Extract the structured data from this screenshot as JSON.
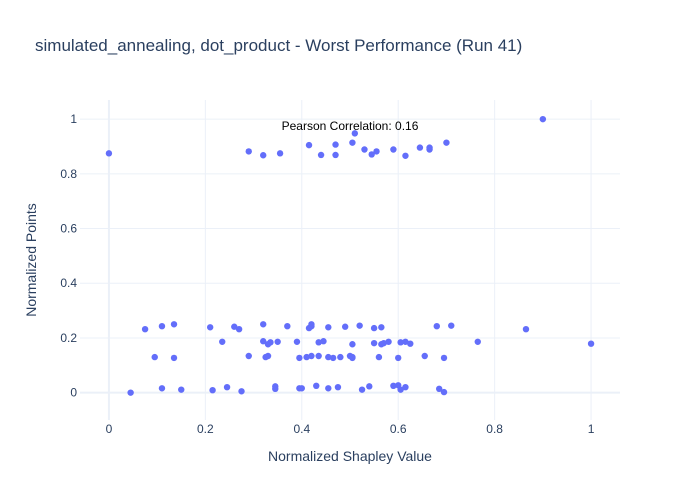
{
  "chart_data": {
    "type": "scatter",
    "title": "simulated_annealing, dot_product - Worst Performance (Run 41)",
    "xlabel": "Normalized Shapley Value",
    "ylabel": "Normalized Points",
    "xlim": [
      -0.06,
      1.06
    ],
    "ylim": [
      -0.1,
      1.07
    ],
    "xticks": [
      0,
      0.2,
      0.4,
      0.6,
      0.8,
      1
    ],
    "xtick_labels": [
      "0",
      "0.2",
      "0.4",
      "0.6",
      "0.8",
      "1"
    ],
    "yticks": [
      0,
      0.2,
      0.4,
      0.6,
      0.8,
      1
    ],
    "ytick_labels": [
      "0",
      "0.2",
      "0.4",
      "0.6",
      "0.8",
      "1"
    ],
    "grid": true,
    "marker_color": "#636efa",
    "gridline_color": "#ebf0f8",
    "zeroline_color": "#ebf0f8",
    "annotation": {
      "text": "Pearson Correlation: 0.16",
      "x": 0.5,
      "y": 0.975
    },
    "series": [
      {
        "points": [
          [
            0.0,
            0.875
          ],
          [
            0.29,
            0.882
          ],
          [
            0.32,
            0.868
          ],
          [
            0.355,
            0.875
          ],
          [
            0.415,
            0.905
          ],
          [
            0.44,
            0.869
          ],
          [
            0.47,
            0.869
          ],
          [
            0.47,
            0.907
          ],
          [
            0.505,
            0.914
          ],
          [
            0.51,
            0.948
          ],
          [
            0.53,
            0.889
          ],
          [
            0.545,
            0.871
          ],
          [
            0.555,
            0.882
          ],
          [
            0.59,
            0.889
          ],
          [
            0.615,
            0.866
          ],
          [
            0.645,
            0.896
          ],
          [
            0.665,
            0.889
          ],
          [
            0.665,
            0.896
          ],
          [
            0.7,
            0.914
          ],
          [
            0.9,
            1.0
          ],
          [
            0.075,
            0.232
          ],
          [
            0.11,
            0.243
          ],
          [
            0.135,
            0.25
          ],
          [
            0.21,
            0.239
          ],
          [
            0.26,
            0.241
          ],
          [
            0.27,
            0.232
          ],
          [
            0.32,
            0.25
          ],
          [
            0.37,
            0.243
          ],
          [
            0.415,
            0.236
          ],
          [
            0.42,
            0.25
          ],
          [
            0.42,
            0.243
          ],
          [
            0.455,
            0.239
          ],
          [
            0.49,
            0.241
          ],
          [
            0.52,
            0.245
          ],
          [
            0.55,
            0.236
          ],
          [
            0.565,
            0.239
          ],
          [
            0.68,
            0.243
          ],
          [
            0.71,
            0.245
          ],
          [
            0.865,
            0.232
          ],
          [
            0.235,
            0.186
          ],
          [
            0.32,
            0.188
          ],
          [
            0.33,
            0.177
          ],
          [
            0.335,
            0.184
          ],
          [
            0.35,
            0.186
          ],
          [
            0.39,
            0.186
          ],
          [
            0.435,
            0.184
          ],
          [
            0.445,
            0.188
          ],
          [
            0.505,
            0.177
          ],
          [
            0.55,
            0.181
          ],
          [
            0.565,
            0.177
          ],
          [
            0.57,
            0.181
          ],
          [
            0.58,
            0.186
          ],
          [
            0.605,
            0.184
          ],
          [
            0.615,
            0.186
          ],
          [
            0.625,
            0.179
          ],
          [
            0.765,
            0.186
          ],
          [
            1.0,
            0.179
          ],
          [
            0.095,
            0.13
          ],
          [
            0.135,
            0.127
          ],
          [
            0.29,
            0.134
          ],
          [
            0.325,
            0.13
          ],
          [
            0.33,
            0.134
          ],
          [
            0.395,
            0.127
          ],
          [
            0.41,
            0.13
          ],
          [
            0.42,
            0.134
          ],
          [
            0.435,
            0.134
          ],
          [
            0.455,
            0.13
          ],
          [
            0.465,
            0.127
          ],
          [
            0.48,
            0.13
          ],
          [
            0.5,
            0.134
          ],
          [
            0.505,
            0.13
          ],
          [
            0.505,
            0.127
          ],
          [
            0.56,
            0.13
          ],
          [
            0.6,
            0.127
          ],
          [
            0.655,
            0.134
          ],
          [
            0.695,
            0.127
          ],
          [
            0.045,
            0.0
          ],
          [
            0.11,
            0.016
          ],
          [
            0.15,
            0.011
          ],
          [
            0.215,
            0.009
          ],
          [
            0.245,
            0.02
          ],
          [
            0.275,
            0.005
          ],
          [
            0.345,
            0.023
          ],
          [
            0.345,
            0.014
          ],
          [
            0.395,
            0.016
          ],
          [
            0.4,
            0.016
          ],
          [
            0.43,
            0.025
          ],
          [
            0.455,
            0.016
          ],
          [
            0.475,
            0.02
          ],
          [
            0.525,
            0.011
          ],
          [
            0.54,
            0.023
          ],
          [
            0.59,
            0.025
          ],
          [
            0.6,
            0.027
          ],
          [
            0.605,
            0.011
          ],
          [
            0.615,
            0.02
          ],
          [
            0.685,
            0.014
          ],
          [
            0.695,
            0.002
          ]
        ]
      }
    ]
  }
}
